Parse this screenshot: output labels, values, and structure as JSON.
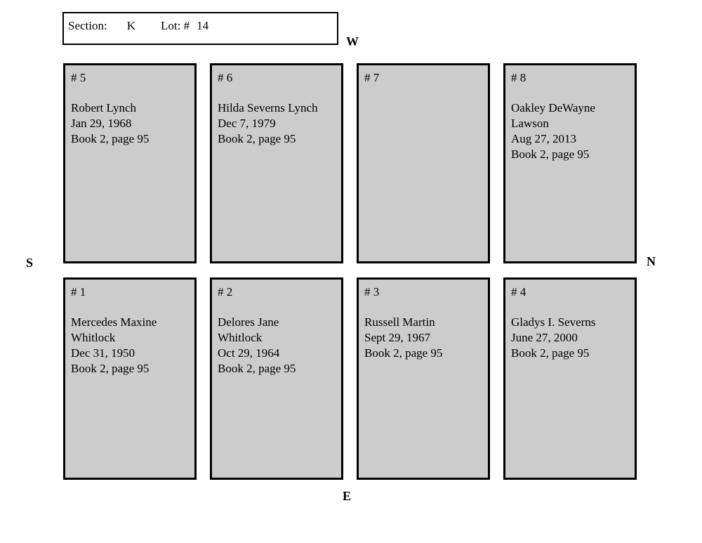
{
  "title_box": {
    "section_label": "Section:",
    "section_value": "K",
    "lot_label": "Lot: #",
    "lot_value": "14"
  },
  "compass": {
    "west": "W",
    "south": "S",
    "north": "N",
    "east": "E"
  },
  "colors": {
    "plot_fill": "#cccccc",
    "border": "#000000",
    "page_bg": "#ffffff"
  },
  "lot": {
    "rows": [
      {
        "name": "top",
        "plots": [
          {
            "number": "# 5",
            "lines": [
              "Robert Lynch",
              "Jan 29, 1968",
              "Book 2, page 95"
            ]
          },
          {
            "number": "# 6",
            "lines": [
              "Hilda Severns Lynch",
              "Dec 7, 1979",
              "Book 2, page 95"
            ]
          },
          {
            "number": "# 7",
            "lines": []
          },
          {
            "number": "# 8",
            "lines": [
              "Oakley DeWayne",
              "Lawson",
              "Aug 27, 2013",
              "Book 2, page 95"
            ]
          }
        ]
      },
      {
        "name": "bottom",
        "plots": [
          {
            "number": "# 1",
            "lines": [
              "Mercedes Maxine",
              "Whitlock",
              "Dec 31, 1950",
              "Book 2, page 95"
            ]
          },
          {
            "number": "# 2",
            "lines": [
              "Delores Jane",
              "Whitlock",
              "Oct 29, 1964",
              "Book 2, page 95"
            ]
          },
          {
            "number": "# 3",
            "lines": [
              "Russell Martin",
              "Sept 29, 1967",
              "Book 2, page 95"
            ]
          },
          {
            "number": "# 4",
            "lines": [
              "Gladys I. Severns",
              "June 27, 2000",
              "Book 2, page 95"
            ]
          }
        ]
      }
    ]
  }
}
